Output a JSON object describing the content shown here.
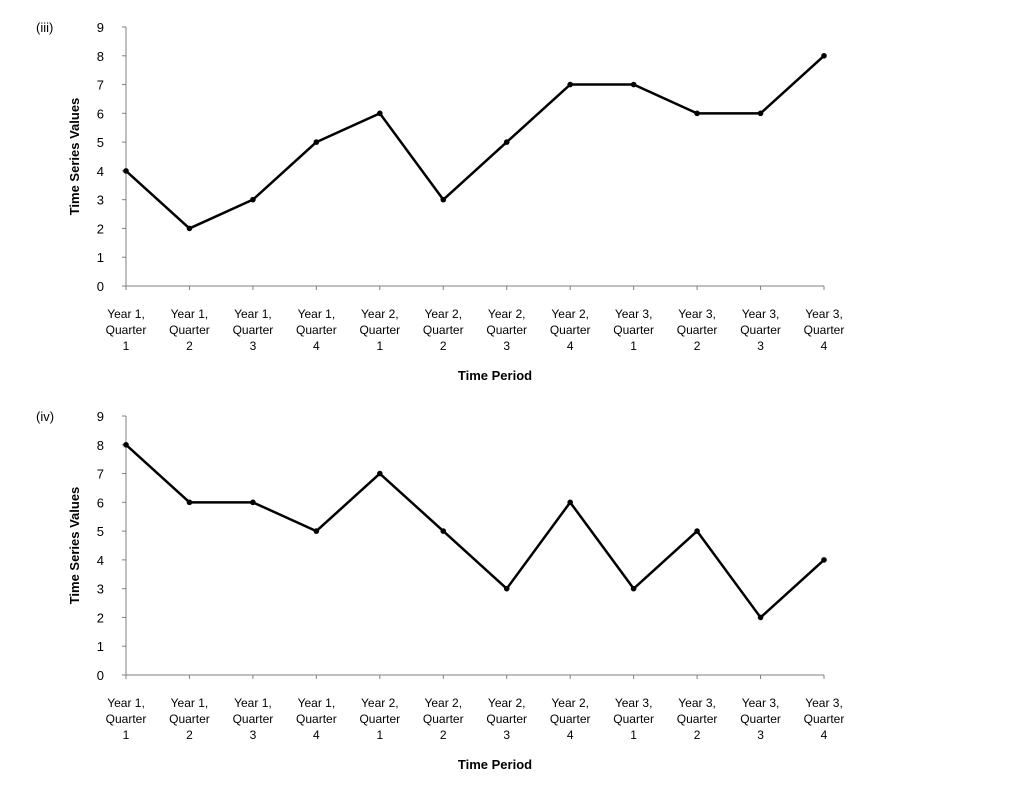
{
  "chart_data": [
    {
      "type": "line",
      "panel_label": "(iii)",
      "categories": [
        [
          "Year 1,",
          "Quarter",
          "1"
        ],
        [
          "Year 1,",
          "Quarter",
          "2"
        ],
        [
          "Year 1,",
          "Quarter",
          "3"
        ],
        [
          "Year 1,",
          "Quarter",
          "4"
        ],
        [
          "Year 2,",
          "Quarter",
          "1"
        ],
        [
          "Year 2,",
          "Quarter",
          "2"
        ],
        [
          "Year 2,",
          "Quarter",
          "3"
        ],
        [
          "Year 2,",
          "Quarter",
          "4"
        ],
        [
          "Year 3,",
          "Quarter",
          "1"
        ],
        [
          "Year 3,",
          "Quarter",
          "2"
        ],
        [
          "Year 3,",
          "Quarter",
          "3"
        ],
        [
          "Year 3,",
          "Quarter",
          "4"
        ]
      ],
      "values": [
        4,
        2,
        3,
        5,
        6,
        3,
        5,
        7,
        7,
        6,
        6,
        8
      ],
      "xlabel": "Time Period",
      "ylabel": "Time Series Values",
      "ylim": [
        0,
        9
      ],
      "yticks": [
        0,
        1,
        2,
        3,
        4,
        5,
        6,
        7,
        8,
        9
      ],
      "grid": false,
      "line_color": "#000000"
    },
    {
      "type": "line",
      "panel_label": "(iv)",
      "categories": [
        [
          "Year 1,",
          "Quarter",
          "1"
        ],
        [
          "Year 1,",
          "Quarter",
          "2"
        ],
        [
          "Year 1,",
          "Quarter",
          "3"
        ],
        [
          "Year 1,",
          "Quarter",
          "4"
        ],
        [
          "Year 2,",
          "Quarter",
          "1"
        ],
        [
          "Year 2,",
          "Quarter",
          "2"
        ],
        [
          "Year 2,",
          "Quarter",
          "3"
        ],
        [
          "Year 2,",
          "Quarter",
          "4"
        ],
        [
          "Year 3,",
          "Quarter",
          "1"
        ],
        [
          "Year 3,",
          "Quarter",
          "2"
        ],
        [
          "Year 3,",
          "Quarter",
          "3"
        ],
        [
          "Year 3,",
          "Quarter",
          "4"
        ]
      ],
      "values": [
        8,
        6,
        6,
        5,
        7,
        5,
        3,
        6,
        3,
        5,
        2,
        4
      ],
      "xlabel": "Time Period",
      "ylabel": "Time Series Values",
      "ylim": [
        0,
        9
      ],
      "yticks": [
        0,
        1,
        2,
        3,
        4,
        5,
        6,
        7,
        8,
        9
      ],
      "grid": false,
      "line_color": "#000000"
    }
  ]
}
